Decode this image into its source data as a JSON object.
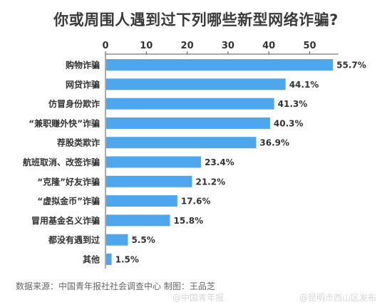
{
  "chart_data": {
    "type": "bar",
    "orientation": "horizontal",
    "title": "你或周围人遇到过下列哪些新型网络诈骗?",
    "categories": [
      "购物诈骗",
      "网贷诈骗",
      "仿冒身份欺诈",
      "“兼职赚外快”诈骗",
      "荐股类欺诈",
      "航班取消、改签诈骗",
      "“克隆”好友诈骗",
      "“虚拟金币”诈骗",
      "冒用基金名义诈骗",
      "都没有遇到过",
      "其他"
    ],
    "values": [
      55.7,
      44.1,
      41.3,
      40.3,
      36.9,
      23.4,
      21.2,
      17.6,
      15.8,
      5.5,
      1.5
    ],
    "value_labels": [
      "55.7%",
      "44.1%",
      "41.3%",
      "40.3%",
      "36.9%",
      "23.4%",
      "21.2%",
      "17.6%",
      "15.8%",
      "5.5%",
      "1.5%"
    ],
    "xticks": [
      0,
      10,
      20,
      30,
      40,
      50
    ],
    "xlim": [
      0,
      57
    ],
    "axis_position": "top",
    "grid": false,
    "bar_color": "#4ea6ec"
  },
  "source": "数据来源：中国青年报社社会调查中心 制图：王品芝",
  "watermarks": [
    "@中国青年报",
    "@昆明市西山区发布"
  ]
}
